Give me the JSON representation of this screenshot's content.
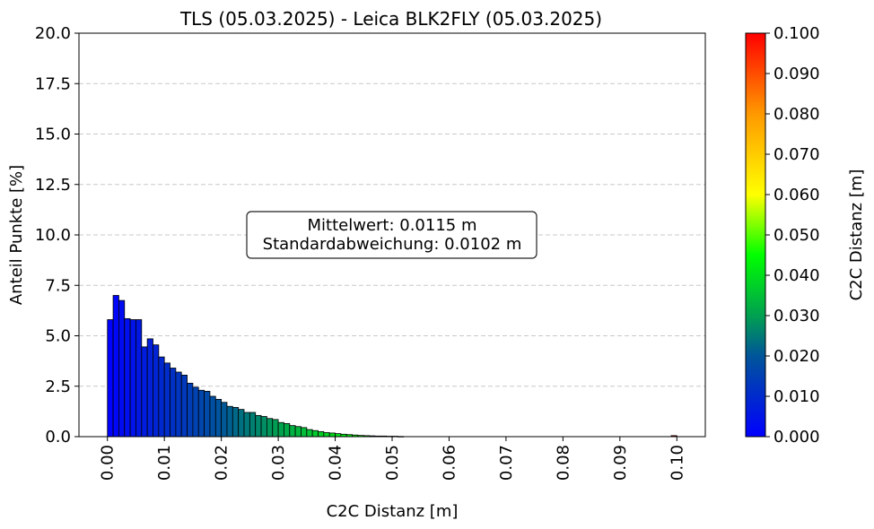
{
  "chart_data": {
    "type": "bar",
    "title": "TLS (05.03.2025) - Leica BLK2FLY (05.03.2025)",
    "xlabel": "C2C Distanz [m]",
    "ylabel": "Anteil Punkte [%]",
    "xlim": [
      -0.005,
      0.105
    ],
    "ylim": [
      0,
      20
    ],
    "bin_width": 0.001,
    "x_ticks": [
      "0.00",
      "0.01",
      "0.02",
      "0.03",
      "0.04",
      "0.05",
      "0.06",
      "0.07",
      "0.08",
      "0.09",
      "0.10"
    ],
    "y_ticks": [
      "0.0",
      "2.5",
      "5.0",
      "7.5",
      "10.0",
      "12.5",
      "15.0",
      "17.5",
      "20.0"
    ],
    "grid": "y dashed",
    "bins": {
      "x": [
        0.0,
        0.001,
        0.002,
        0.003,
        0.004,
        0.005,
        0.006,
        0.007,
        0.008,
        0.009,
        0.01,
        0.011,
        0.012,
        0.013,
        0.014,
        0.015,
        0.016,
        0.017,
        0.018,
        0.019,
        0.02,
        0.021,
        0.022,
        0.023,
        0.024,
        0.025,
        0.026,
        0.027,
        0.028,
        0.029,
        0.03,
        0.031,
        0.032,
        0.033,
        0.034,
        0.035,
        0.036,
        0.037,
        0.038,
        0.039,
        0.04,
        0.041,
        0.042,
        0.043,
        0.044,
        0.045,
        0.046,
        0.047,
        0.048,
        0.049,
        0.05,
        0.051,
        0.099
      ],
      "values": [
        5.8,
        7.0,
        6.75,
        5.85,
        5.8,
        5.8,
        4.45,
        4.85,
        4.55,
        3.95,
        3.65,
        3.4,
        3.2,
        3.05,
        2.65,
        2.45,
        2.3,
        2.25,
        2.0,
        1.85,
        1.7,
        1.5,
        1.45,
        1.35,
        1.2,
        1.2,
        1.05,
        1.0,
        0.9,
        0.85,
        0.7,
        0.65,
        0.55,
        0.5,
        0.45,
        0.35,
        0.3,
        0.25,
        0.2,
        0.18,
        0.15,
        0.12,
        0.1,
        0.08,
        0.06,
        0.05,
        0.04,
        0.03,
        0.03,
        0.02,
        0.02,
        0.01,
        0.05
      ]
    },
    "annotation": {
      "lines": [
        "Mittelwert: 0.0115 m",
        "Standardabweichung: 0.0102 m"
      ]
    },
    "colorbar": {
      "label": "C2C Distanz [m]",
      "range": [
        0,
        0.1
      ],
      "colormap": [
        "#0000ff",
        "#00a050",
        "#00ff00",
        "#ffff00",
        "#ff9900",
        "#ff0000"
      ],
      "ticks": [
        "0.000",
        "0.010",
        "0.020",
        "0.030",
        "0.040",
        "0.050",
        "0.060",
        "0.070",
        "0.080",
        "0.090",
        "0.100"
      ]
    }
  }
}
